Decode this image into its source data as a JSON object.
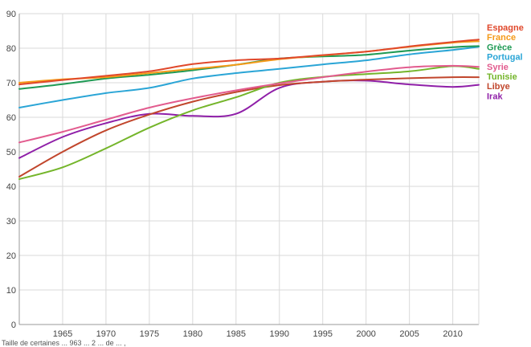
{
  "chart_data": {
    "type": "line",
    "title": "",
    "xlabel": "",
    "ylabel": "",
    "xlim": [
      1960,
      2013
    ],
    "ylim": [
      0,
      90
    ],
    "x_ticks": [
      1965,
      1970,
      1975,
      1980,
      1985,
      1990,
      1995,
      2000,
      2005,
      2010
    ],
    "y_ticks": [
      0,
      10,
      20,
      30,
      40,
      50,
      60,
      70,
      80,
      90
    ],
    "grid": "vertical and horizontal",
    "legend_position": "right",
    "x": [
      1960,
      1965,
      1970,
      1975,
      1980,
      1985,
      1990,
      1995,
      2000,
      2005,
      2010,
      2013
    ],
    "series": [
      {
        "name": "Espagne",
        "color": "#e0482b",
        "values": [
          69.5,
          70.8,
          72.0,
          73.3,
          75.4,
          76.5,
          77.0,
          78.0,
          79.0,
          80.5,
          81.8,
          82.5
        ]
      },
      {
        "name": "France",
        "color": "#f59a18",
        "values": [
          70.0,
          71.0,
          71.6,
          72.8,
          74.0,
          75.2,
          76.8,
          77.9,
          79.0,
          80.4,
          81.6,
          82.0
        ]
      },
      {
        "name": "Grèce",
        "color": "#1f9a54",
        "values": [
          68.2,
          69.6,
          71.2,
          72.3,
          73.6,
          75.2,
          77.0,
          77.6,
          78.1,
          79.3,
          80.3,
          80.6
        ]
      },
      {
        "name": "Portugal",
        "color": "#2aa5d6",
        "values": [
          62.8,
          65.0,
          67.0,
          68.5,
          71.2,
          72.8,
          74.0,
          75.3,
          76.5,
          78.2,
          79.5,
          80.4
        ]
      },
      {
        "name": "Syrie",
        "color": "#e25b8e",
        "values": [
          52.7,
          55.8,
          59.3,
          62.8,
          65.5,
          67.8,
          69.8,
          71.6,
          73.2,
          74.5,
          74.9,
          74.6
        ]
      },
      {
        "name": "Tunisie",
        "color": "#74b52a",
        "values": [
          42.1,
          45.5,
          51.0,
          57.0,
          62.0,
          65.8,
          70.0,
          71.7,
          72.5,
          73.3,
          74.8,
          74.0
        ]
      },
      {
        "name": "Libye",
        "color": "#c1462c",
        "values": [
          42.8,
          50.0,
          56.2,
          60.8,
          64.5,
          67.3,
          69.3,
          70.3,
          70.9,
          71.3,
          71.6,
          71.6
        ]
      },
      {
        "name": "Irak",
        "color": "#8f1fa8",
        "values": [
          48.2,
          54.3,
          58.3,
          61.0,
          60.4,
          61.0,
          68.5,
          70.3,
          70.6,
          69.5,
          68.8,
          69.4
        ]
      }
    ]
  },
  "footer_text": "Taille de certaines ... 963 ... 2 ... de ... ,"
}
